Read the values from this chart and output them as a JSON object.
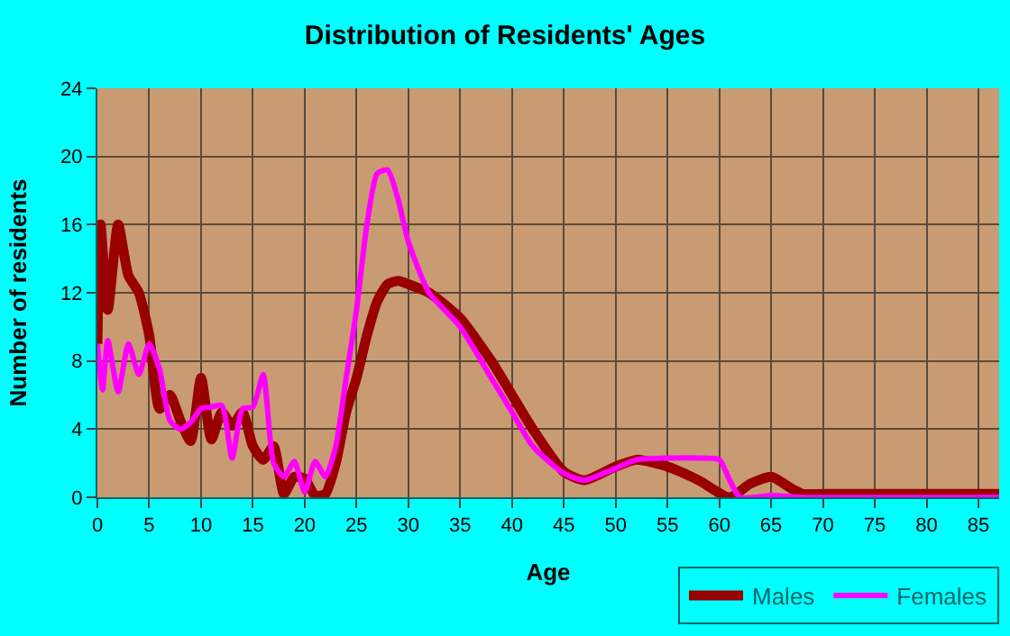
{
  "chart_data": {
    "type": "line",
    "title": "Distribution of Residents' Ages",
    "xlabel": "Age",
    "ylabel": "Number of residents",
    "series": [
      {
        "name": "Males",
        "color": "#990000",
        "x": [
          0,
          0.3,
          1,
          2,
          3,
          4,
          5,
          6,
          7,
          8,
          9,
          10,
          11,
          12,
          13,
          14,
          15,
          16,
          17,
          18,
          19,
          20,
          21,
          22,
          23,
          24,
          25,
          26,
          27,
          28,
          29,
          30,
          32,
          35,
          38,
          40,
          42,
          45,
          47,
          50,
          52,
          55,
          58,
          61,
          63,
          65,
          67,
          68,
          70,
          87
        ],
        "values": [
          9,
          16,
          11,
          16,
          13,
          12,
          9.5,
          5.2,
          6,
          4.5,
          3.3,
          7,
          3.4,
          5,
          4.2,
          5,
          3,
          2.2,
          3,
          0.2,
          1.2,
          1.1,
          0.1,
          0.2,
          2,
          5,
          7,
          9.5,
          11.5,
          12.5,
          12.7,
          12.5,
          12,
          10.5,
          8,
          6,
          4,
          1.5,
          1,
          1.8,
          2.2,
          1.8,
          1,
          0,
          0.8,
          1.2,
          0.5,
          0.2,
          0.2,
          0.2
        ]
      },
      {
        "name": "Females",
        "color": "#ff00ff",
        "x": [
          0,
          0.5,
          1,
          2,
          3,
          4,
          5,
          6,
          7,
          8,
          9,
          10,
          11,
          12,
          13,
          14,
          15,
          16,
          17,
          18,
          19,
          20,
          21,
          22,
          23,
          24,
          25,
          26,
          27,
          28,
          29,
          30,
          32,
          35,
          38,
          40,
          42,
          45,
          47,
          50,
          52,
          55,
          58,
          60,
          61,
          62,
          65,
          68,
          87
        ],
        "values": [
          9,
          6.3,
          9.2,
          6.2,
          9,
          7.2,
          9,
          7.5,
          4.5,
          4,
          4.4,
          5.2,
          5.3,
          5.4,
          2.3,
          5.2,
          5.3,
          7.2,
          2,
          1.2,
          2.1,
          0.3,
          2.1,
          1.2,
          3,
          7,
          11,
          16,
          19,
          19.2,
          17.5,
          15,
          12,
          10,
          7,
          5,
          3,
          1.4,
          1,
          1.7,
          2.2,
          2.3,
          2.3,
          2.2,
          1,
          0,
          0.1,
          0,
          0
        ]
      }
    ],
    "xlim": [
      0,
      87
    ],
    "xticks": [
      0,
      5,
      10,
      15,
      20,
      25,
      30,
      35,
      40,
      45,
      50,
      55,
      60,
      65,
      70,
      75,
      80,
      85
    ],
    "ylim": [
      0,
      24
    ],
    "yticks": [
      0,
      4,
      8,
      12,
      16,
      20,
      24
    ],
    "grid": true,
    "legend": "bottom right",
    "marker": "none",
    "line_style": "solid"
  }
}
